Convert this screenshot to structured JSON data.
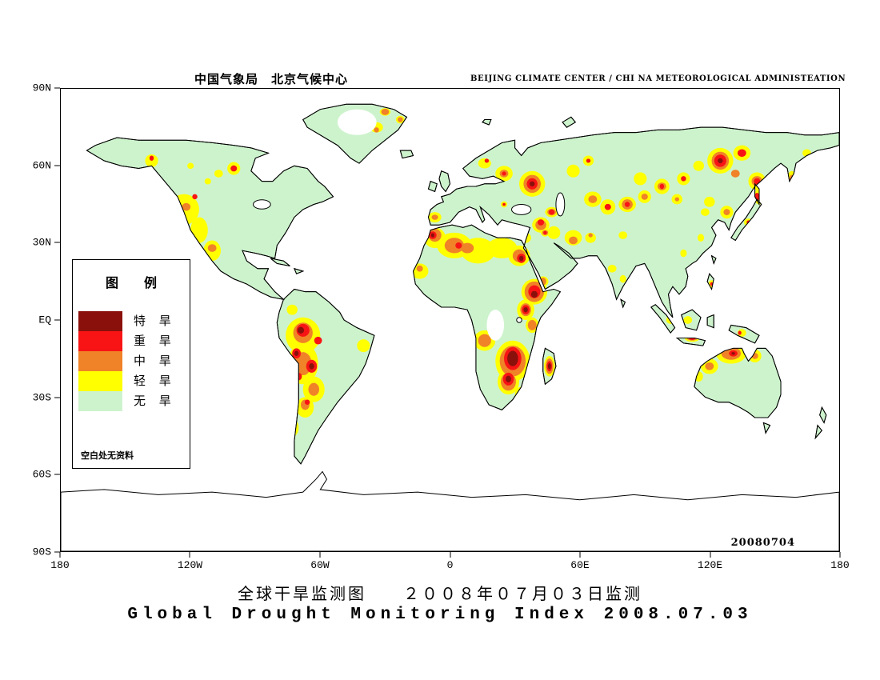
{
  "header": {
    "title_cn": "中国气象局　北京气候中心",
    "title_en": "BEIJING CLIMATE CENTER / CHI NA METEOROLOGICAL ADMINISTEATION"
  },
  "axes": {
    "y_labels": [
      "90N",
      "60N",
      "30N",
      "EQ",
      "30S",
      "60S",
      "90S"
    ],
    "x_labels": [
      "180",
      "120W",
      "60W",
      "0",
      "60E",
      "120E",
      "180"
    ]
  },
  "legend": {
    "title": "图　　例",
    "items": [
      {
        "label": "特 旱",
        "color": "#8a100b"
      },
      {
        "label": "重 旱",
        "color": "#f81414"
      },
      {
        "label": "中 旱",
        "color": "#f08228"
      },
      {
        "label": "轻 旱",
        "color": "#ffff00"
      },
      {
        "label": "无 旱",
        "color": "#cdf3cd"
      }
    ],
    "note": "空白处无资料"
  },
  "map": {
    "datestamp": "20080704",
    "no_drought_color": "#cdf3cd",
    "ocean_color": "#ffffff",
    "coastline_color": "#000000"
  },
  "footer": {
    "caption_cn": "全球干旱监测图　　２００８年０７月０３日监测",
    "caption_en": "Global Drought Monitoring Index  2008.07.03"
  }
}
